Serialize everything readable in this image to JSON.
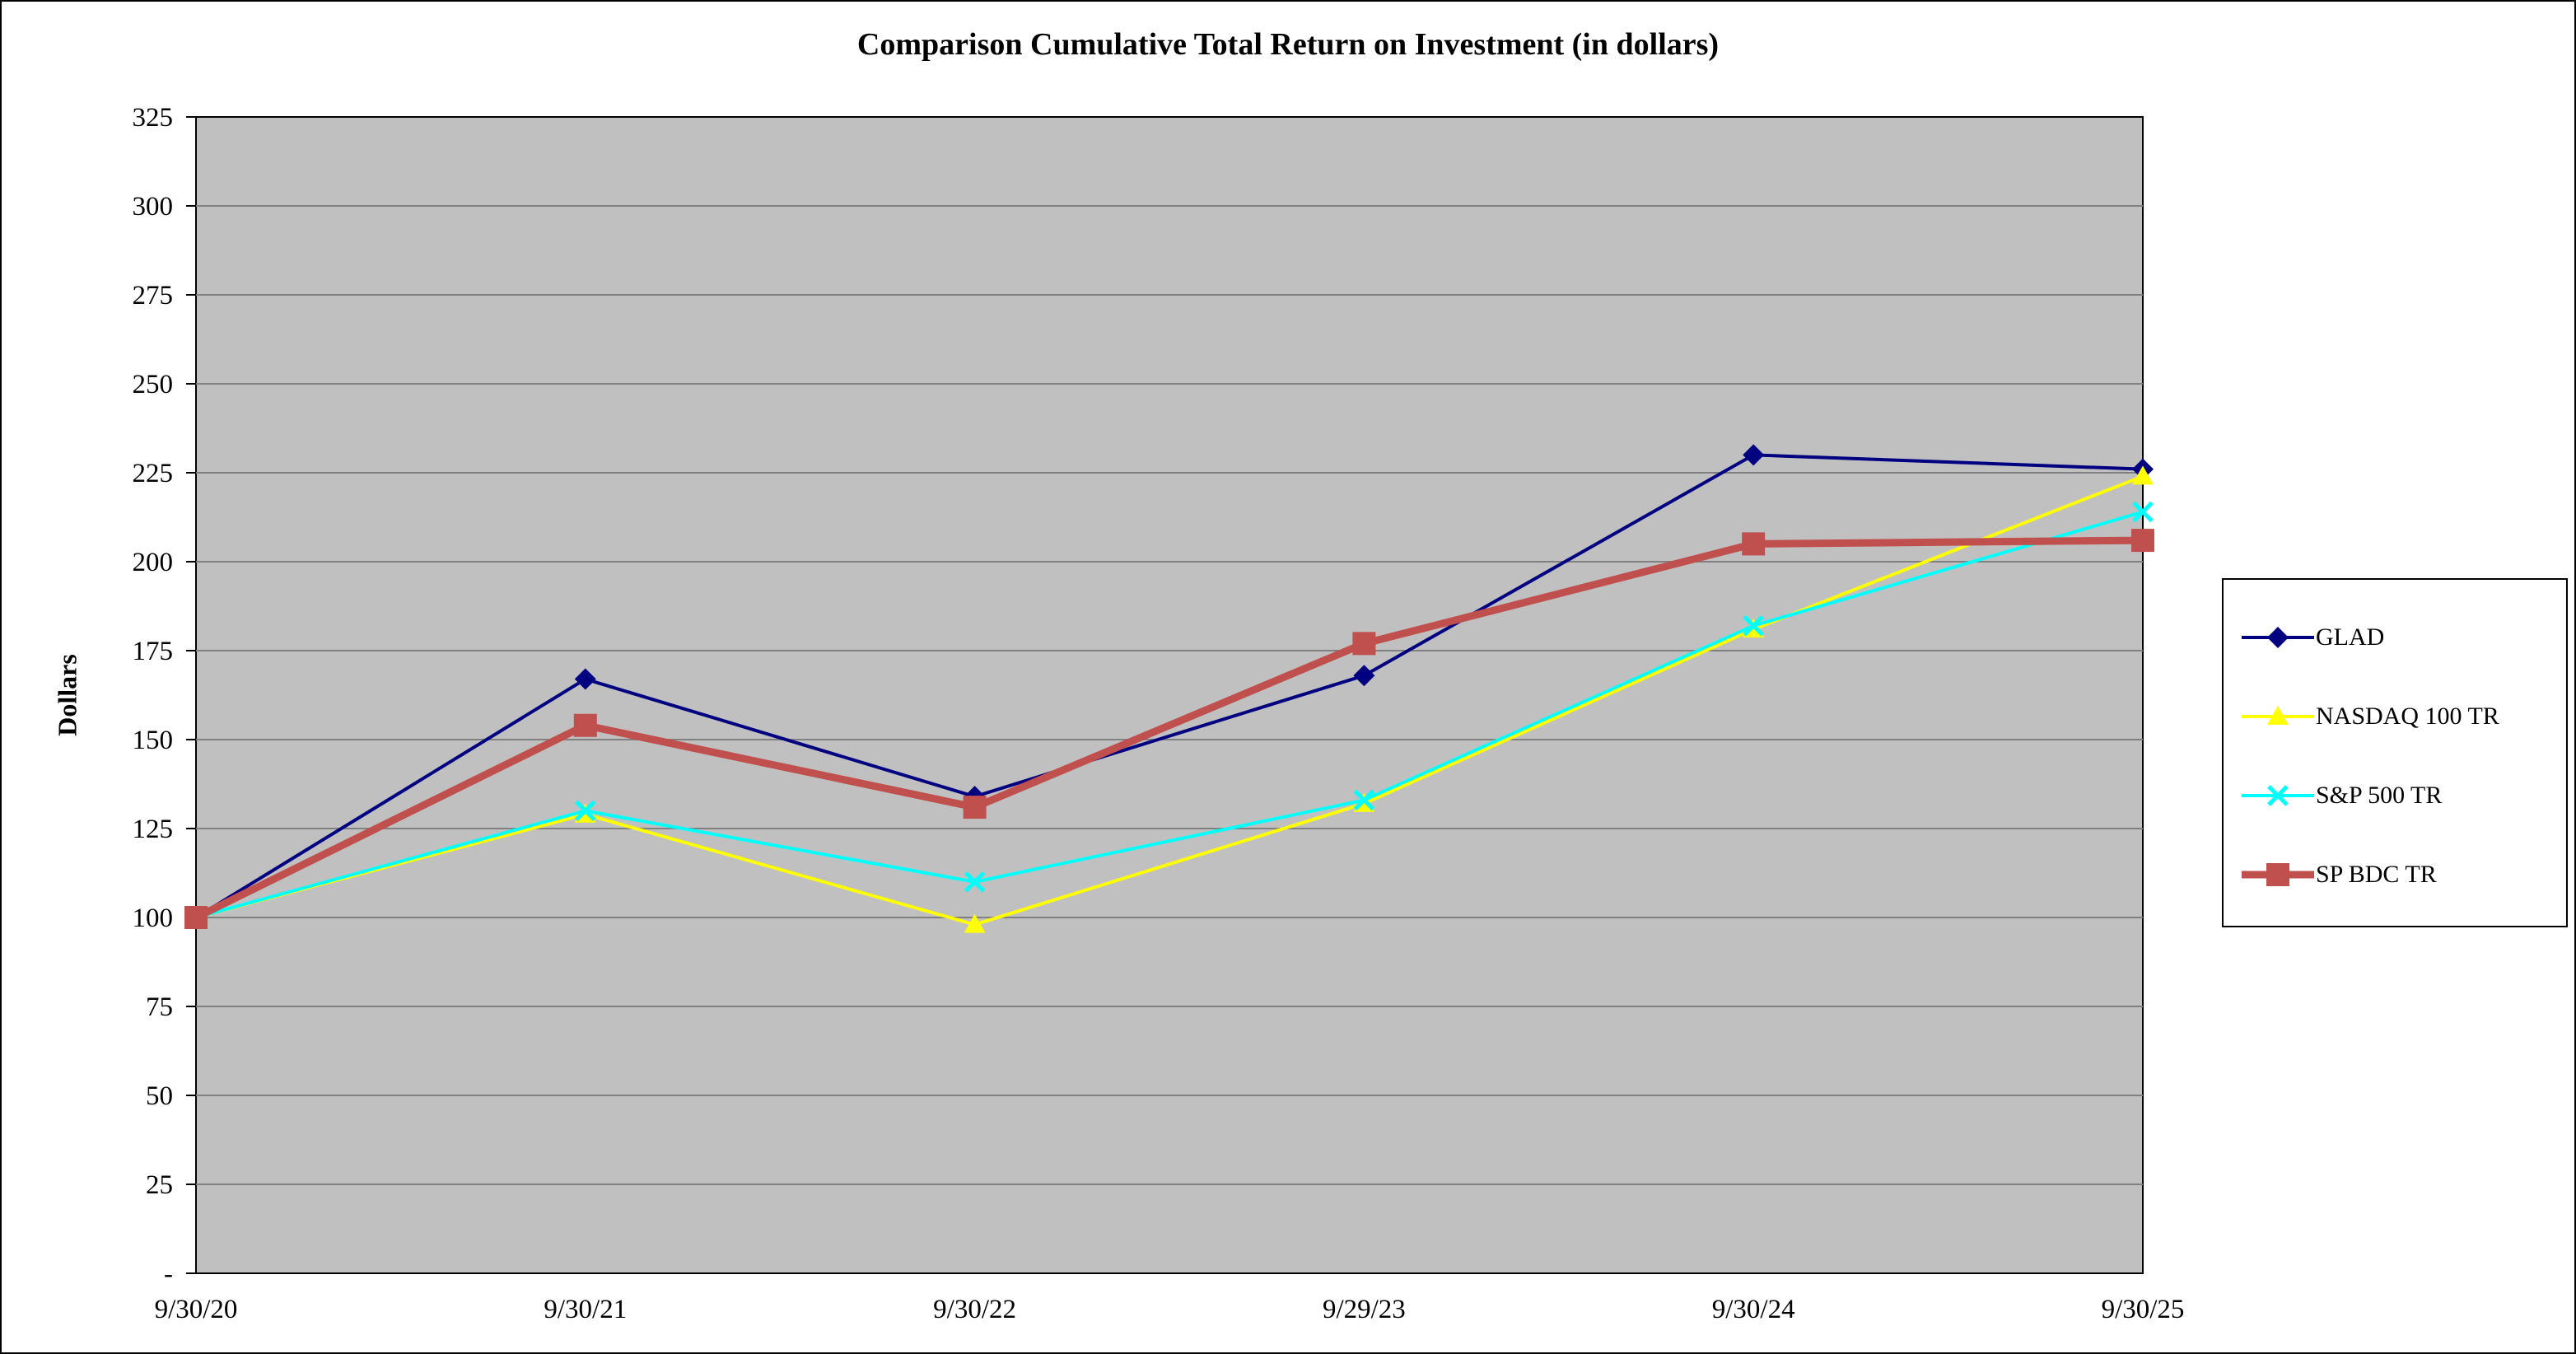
{
  "chart_data": {
    "type": "line",
    "title": "Comparison Cumulative Total Return on Investment (in dollars)",
    "ylabel": "Dollars",
    "xlabel": "",
    "categories": [
      "9/30/20",
      "9/30/21",
      "9/30/22",
      "9/29/23",
      "9/30/24",
      "9/30/25"
    ],
    "ylim": [
      0,
      325
    ],
    "ytick_step": 25,
    "ytick_labels": [
      "-",
      "25",
      "50",
      "75",
      "100",
      "125",
      "150",
      "175",
      "200",
      "225",
      "250",
      "275",
      "300",
      "325"
    ],
    "grid": true,
    "legend_position": "right",
    "plot_bg_color": "#c0c0c0",
    "gridline_color": "#808080",
    "series": [
      {
        "name": "GLAD",
        "color": "#000080",
        "marker": "diamond",
        "line_width": 4,
        "values": [
          100,
          167,
          134,
          168,
          230,
          226
        ]
      },
      {
        "name": "NASDAQ 100 TR",
        "color": "#ffff00",
        "marker": "triangle",
        "line_width": 4,
        "values": [
          100,
          129,
          98,
          132,
          181,
          224
        ]
      },
      {
        "name": "S&P 500 TR",
        "color": "#00ffff",
        "marker": "x",
        "line_width": 4,
        "values": [
          100,
          130,
          110,
          133,
          182,
          214
        ]
      },
      {
        "name": "SP BDC TR",
        "color": "#c0504d",
        "marker": "square",
        "line_width": 9,
        "values": [
          100,
          154,
          131,
          177,
          205,
          206
        ]
      }
    ]
  }
}
